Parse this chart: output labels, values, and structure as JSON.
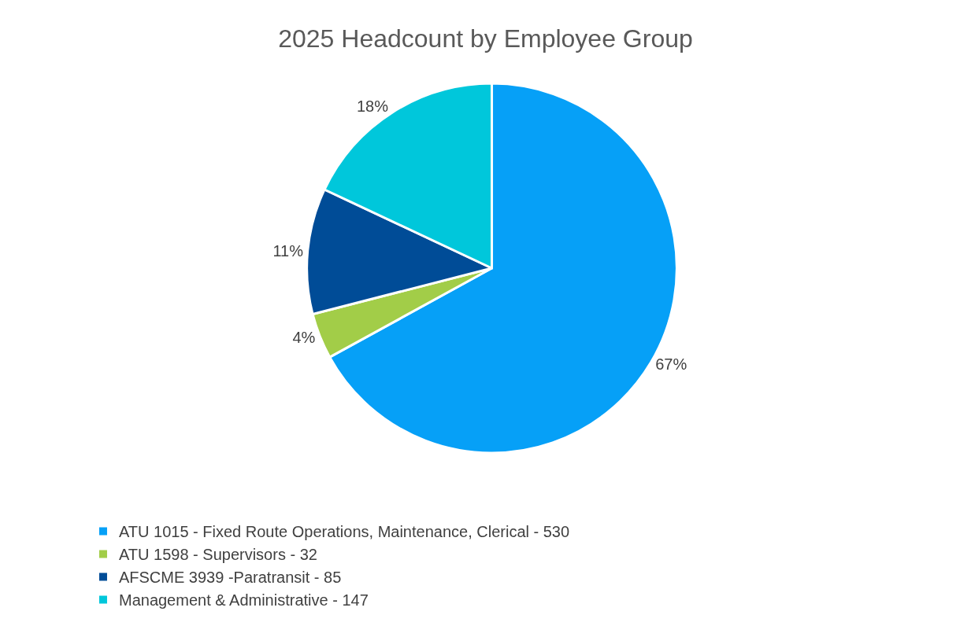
{
  "chart_data": {
    "type": "pie",
    "title": "2025 Headcount by Employee Group",
    "categories": [
      "ATU 1015 - Fixed Route Operations, Maintenance, Clerical - 530",
      "ATU 1598 - Supervisors - 32",
      "AFSCME 3939 -Paratransit - 85",
      "Management & Administrative - 147"
    ],
    "values": [
      67,
      4,
      11,
      18
    ],
    "value_labels": [
      "67%",
      "4%",
      "11%",
      "18%"
    ],
    "colors": [
      "#06a0f7",
      "#a2cd48",
      "#004c97",
      "#00c7db"
    ],
    "legend": "bottom left"
  }
}
